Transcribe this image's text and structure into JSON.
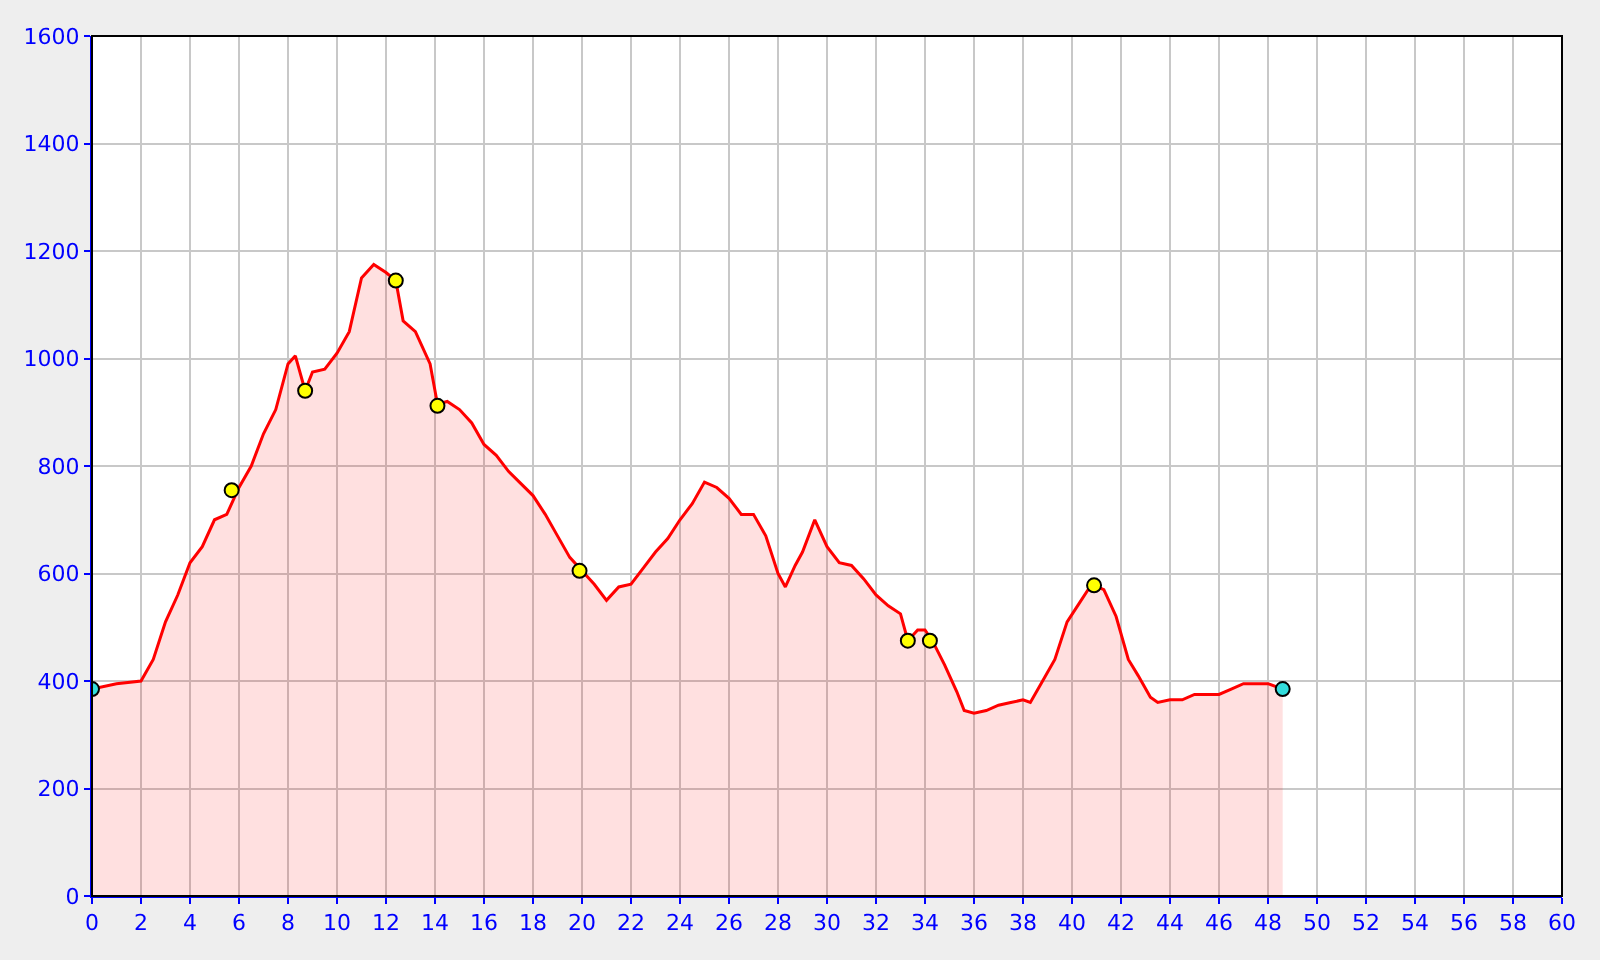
{
  "chart_data": {
    "type": "area",
    "xlim": [
      0,
      60
    ],
    "xticks": [
      0,
      2,
      4,
      6,
      8,
      10,
      12,
      14,
      16,
      18,
      20,
      22,
      24,
      26,
      28,
      30,
      32,
      34,
      36,
      38,
      40,
      42,
      44,
      46,
      48,
      50,
      52,
      54,
      56,
      58,
      60
    ],
    "ylim": [
      0,
      1600
    ],
    "yticks": [
      0,
      200,
      400,
      600,
      800,
      1000,
      1200,
      1400,
      1600
    ],
    "grid": true,
    "series": [
      {
        "color": "#ff0000",
        "x": [
          0,
          1,
          2,
          2.5,
          3,
          3.5,
          4,
          4.5,
          5,
          5.5,
          6,
          6.5,
          7,
          7.5,
          8,
          8.3,
          8.7,
          9,
          9.5,
          10,
          10.5,
          11,
          11.5,
          12,
          12.4,
          12.7,
          13.2,
          13.8,
          14.1,
          14.5,
          15,
          15.5,
          16,
          16.5,
          17,
          18,
          18.5,
          19,
          19.5,
          20,
          20.5,
          21,
          21.5,
          22,
          22.5,
          23,
          23.5,
          24,
          24.5,
          25,
          25.5,
          26,
          26.5,
          27,
          27.5,
          28,
          28.3,
          28.7,
          29,
          29.5,
          30,
          30.5,
          31,
          31.5,
          32,
          32.5,
          33,
          33.3,
          33.7,
          34,
          34.3,
          34.8,
          35.3,
          35.6,
          36,
          36.5,
          37,
          37.5,
          38,
          38.3,
          38.8,
          39.3,
          39.8,
          40.3,
          40.8,
          41.3,
          41.8,
          42.3,
          42.7,
          43.2,
          43.5,
          44,
          44.5,
          45,
          46,
          46.5,
          47,
          48,
          48.6
        ],
        "values": [
          385,
          395,
          400,
          440,
          510,
          560,
          620,
          650,
          700,
          710,
          760,
          800,
          860,
          905,
          990,
          1005,
          940,
          975,
          980,
          1010,
          1050,
          1150,
          1175,
          1160,
          1145,
          1070,
          1050,
          990,
          915,
          920,
          905,
          880,
          840,
          820,
          790,
          745,
          710,
          670,
          630,
          605,
          580,
          550,
          575,
          580,
          610,
          640,
          665,
          700,
          730,
          770,
          760,
          740,
          710,
          710,
          670,
          600,
          575,
          615,
          640,
          700,
          650,
          620,
          615,
          590,
          560,
          540,
          525,
          475,
          495,
          495,
          475,
          430,
          380,
          345,
          340,
          345,
          355,
          360,
          365,
          360,
          400,
          440,
          510,
          545,
          580,
          570,
          520,
          440,
          410,
          370,
          360,
          365,
          365,
          375,
          375,
          385,
          395,
          395,
          385
        ]
      },
      {
        "type": "scatter",
        "marker": "circle",
        "x": [
          0,
          5.7,
          8.7,
          12.4,
          14.1,
          19.9,
          33.3,
          34.2,
          40.9,
          48.6
        ],
        "values": [
          385,
          755,
          940,
          1145,
          912,
          605,
          475,
          475,
          578,
          385
        ],
        "colors": [
          "#33dddd",
          "#ffff00",
          "#ffff00",
          "#ffff00",
          "#ffff00",
          "#ffff00",
          "#ffff00",
          "#ffff00",
          "#ffff00",
          "#33dddd"
        ]
      }
    ]
  }
}
